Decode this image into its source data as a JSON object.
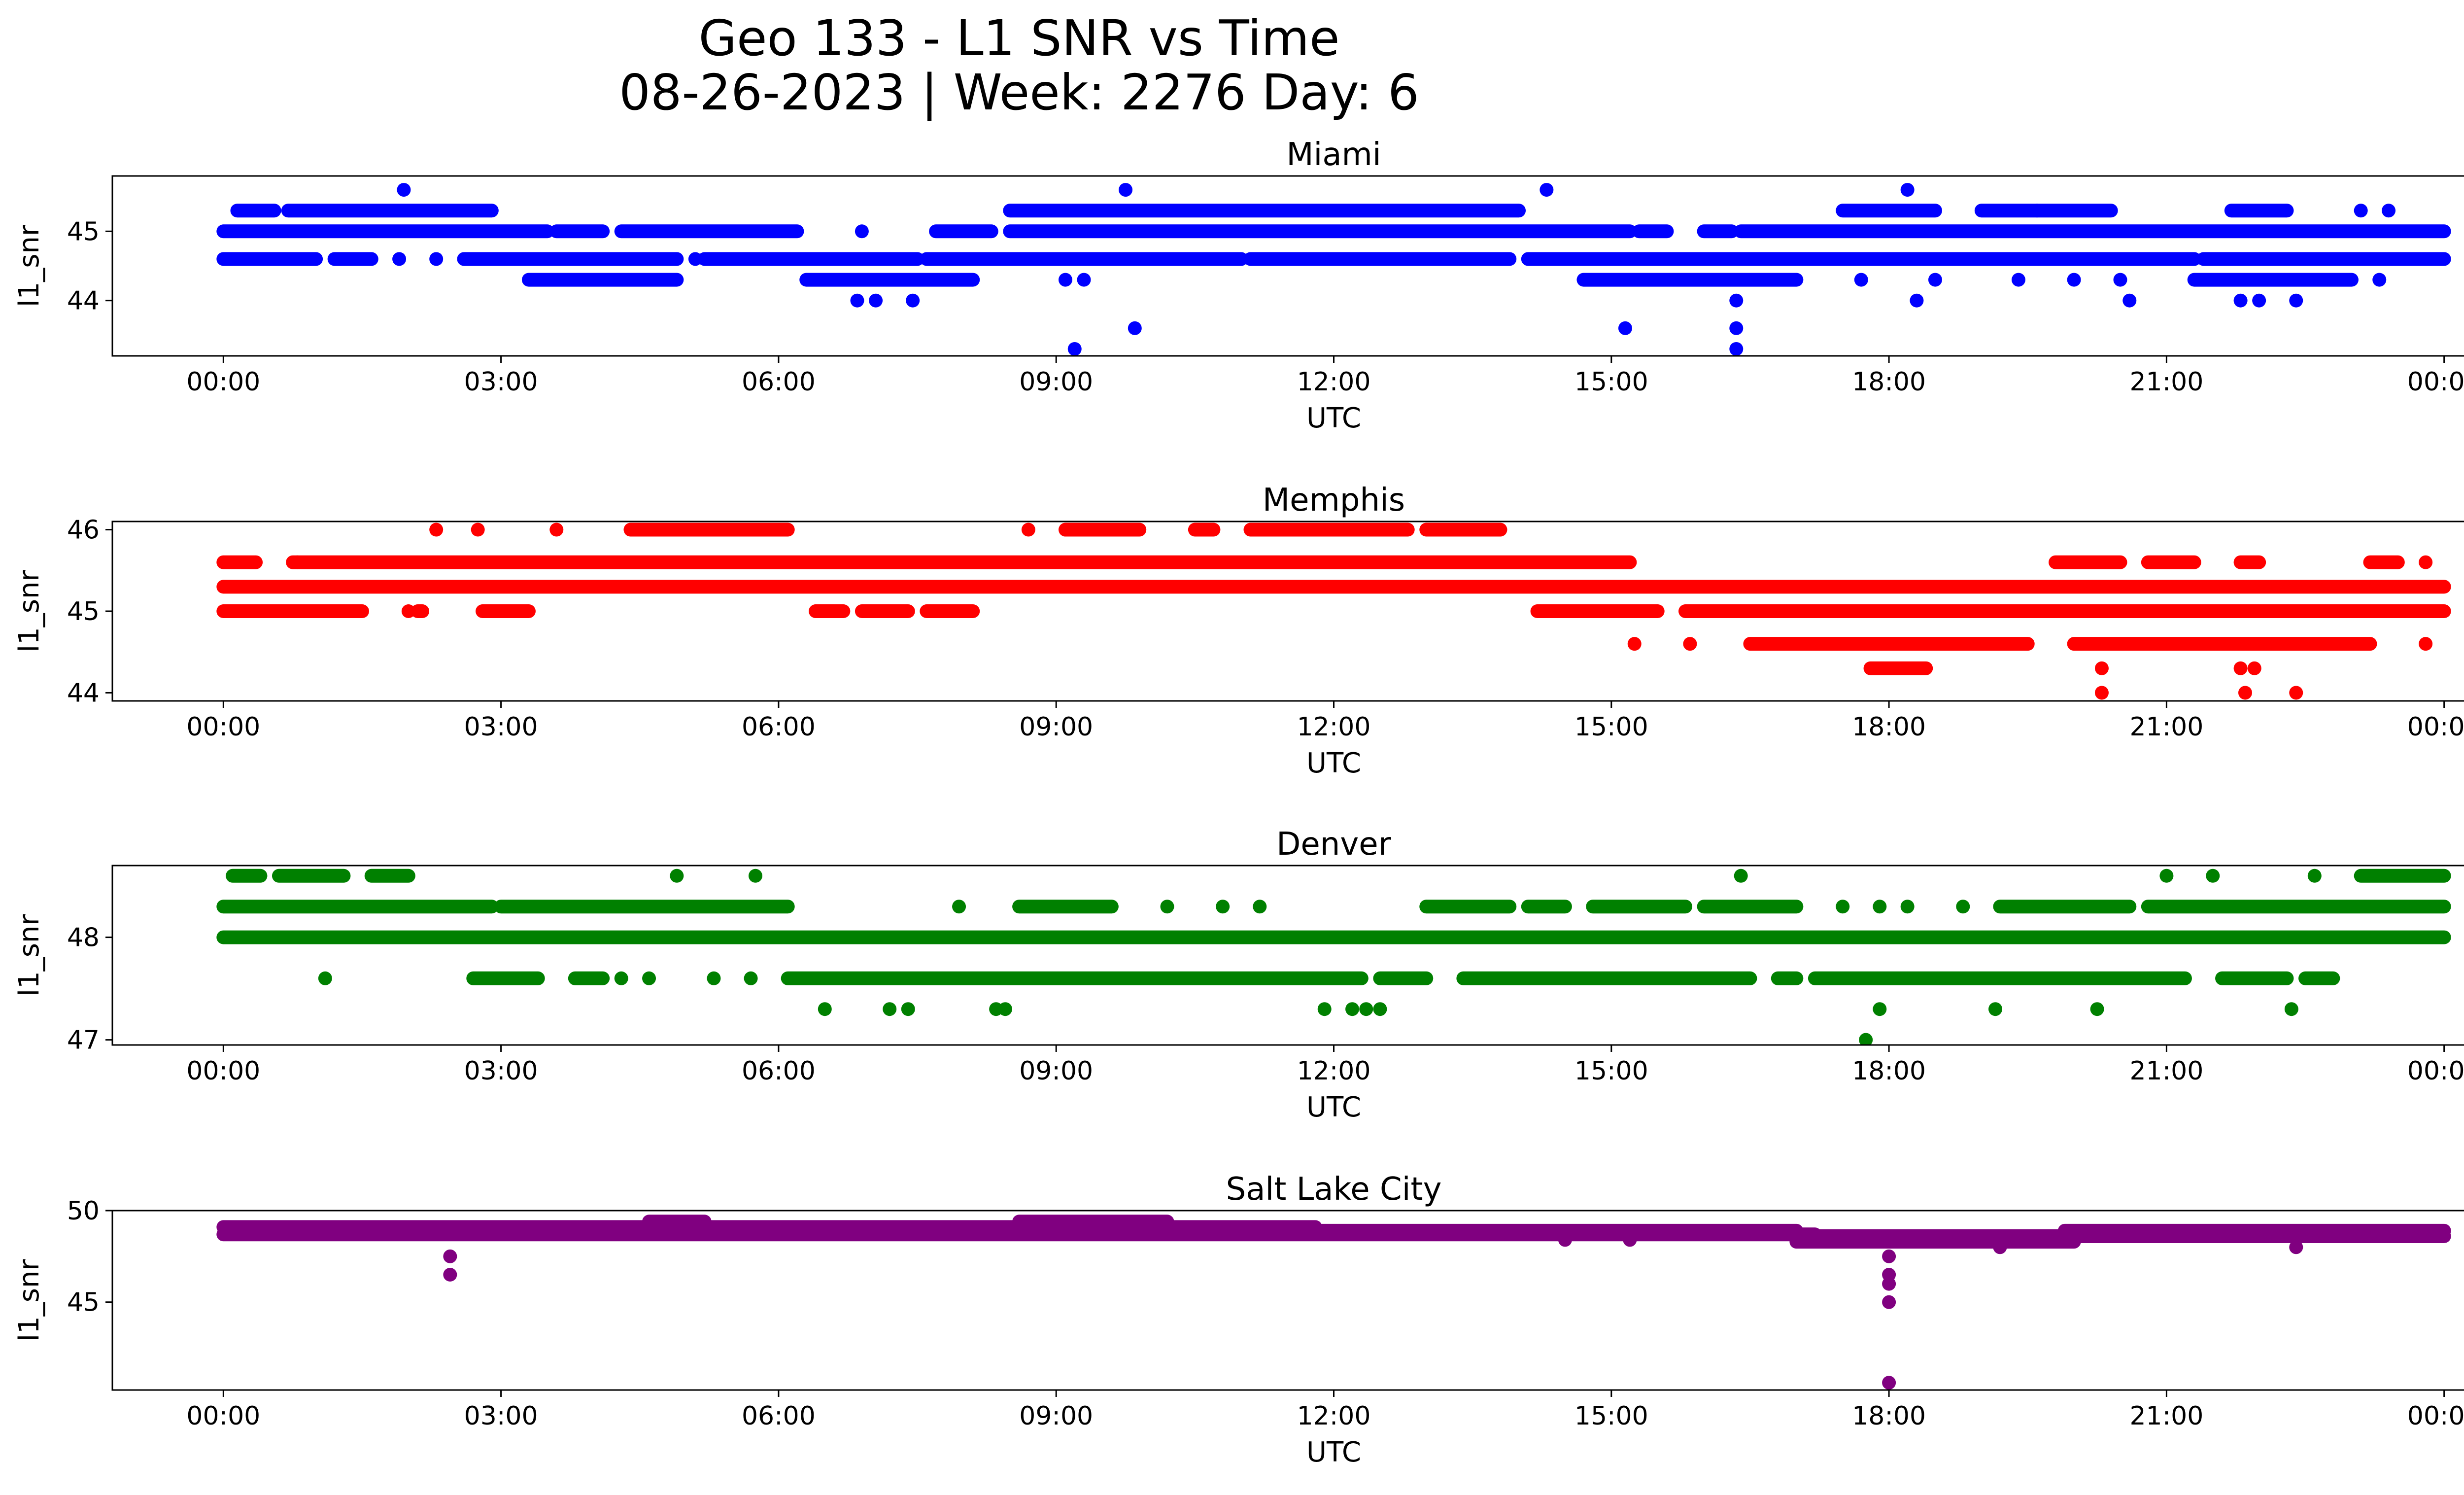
{
  "figure": {
    "title_line1": "Geo 133 - L1 SNR vs Time",
    "title_line2": "08-26-2023 | Week: 2276 Day: 6"
  },
  "chart_data": [
    {
      "type": "scatter",
      "title": "Miami",
      "xlabel": "UTC",
      "ylabel": "l1_snr",
      "color": "#0000ff",
      "x_ticks": [
        "00:00",
        "03:00",
        "06:00",
        "09:00",
        "12:00",
        "15:00",
        "18:00",
        "21:00",
        "00:00"
      ],
      "x_range_hours": [
        -1.2,
        25.2
      ],
      "ylim": [
        43.2,
        45.8
      ],
      "y_ticks": [
        44,
        45
      ],
      "bands": [
        {
          "y": 45.0,
          "segments": [
            [
              0,
              3.5
            ],
            [
              3.6,
              4.1
            ],
            [
              4.3,
              6.2
            ],
            [
              7.7,
              8.3
            ],
            [
              8.5,
              15.2
            ],
            [
              15.3,
              15.6
            ],
            [
              16.0,
              16.3
            ],
            [
              16.4,
              24.0
            ]
          ]
        },
        {
          "y": 44.6,
          "segments": [
            [
              0,
              1.0
            ],
            [
              1.2,
              1.6
            ],
            [
              2.6,
              4.9
            ],
            [
              5.2,
              7.5
            ],
            [
              7.6,
              11.0
            ],
            [
              11.1,
              13.9
            ],
            [
              14.1,
              21.3
            ],
            [
              21.4,
              24.0
            ]
          ]
        },
        {
          "y": 45.3,
          "segments": [
            [
              0.15,
              0.55
            ],
            [
              0.7,
              2.9
            ],
            [
              8.5,
              14.0
            ],
            [
              17.5,
              18.5
            ],
            [
              19.0,
              20.4
            ],
            [
              21.7,
              22.3
            ]
          ]
        },
        {
          "y": 44.3,
          "segments": [
            [
              3.3,
              4.9
            ],
            [
              6.3,
              8.1
            ],
            [
              14.7,
              17.0
            ],
            [
              21.3,
              23.0
            ]
          ]
        }
      ],
      "points": [
        {
          "x": 1.95,
          "y": 45.6
        },
        {
          "x": 9.75,
          "y": 45.6
        },
        {
          "x": 14.3,
          "y": 45.6
        },
        {
          "x": 18.2,
          "y": 45.6
        },
        {
          "x": 2.3,
          "y": 44.6
        },
        {
          "x": 1.9,
          "y": 44.6
        },
        {
          "x": 5.1,
          "y": 44.6
        },
        {
          "x": 6.9,
          "y": 45.0
        },
        {
          "x": 23.4,
          "y": 45.3
        },
        {
          "x": 23.1,
          "y": 45.3
        },
        {
          "x": 19.6,
          "y": 45.3
        },
        {
          "x": 6.85,
          "y": 44.0
        },
        {
          "x": 7.05,
          "y": 44.0
        },
        {
          "x": 7.45,
          "y": 44.0
        },
        {
          "x": 20.6,
          "y": 44.0
        },
        {
          "x": 21.8,
          "y": 44.0
        },
        {
          "x": 22.0,
          "y": 44.0
        },
        {
          "x": 22.4,
          "y": 44.0
        },
        {
          "x": 16.35,
          "y": 44.0
        },
        {
          "x": 18.3,
          "y": 44.0
        },
        {
          "x": 9.85,
          "y": 43.6
        },
        {
          "x": 15.15,
          "y": 43.6
        },
        {
          "x": 16.35,
          "y": 43.6
        },
        {
          "x": 9.2,
          "y": 43.3
        },
        {
          "x": 16.35,
          "y": 43.3
        },
        {
          "x": 17.7,
          "y": 44.3
        },
        {
          "x": 18.5,
          "y": 44.3
        },
        {
          "x": 19.4,
          "y": 44.3
        },
        {
          "x": 20.0,
          "y": 44.3
        },
        {
          "x": 20.5,
          "y": 44.3
        },
        {
          "x": 23.3,
          "y": 44.3
        },
        {
          "x": 9.1,
          "y": 44.3
        },
        {
          "x": 9.3,
          "y": 44.3
        }
      ]
    },
    {
      "type": "scatter",
      "title": "Memphis",
      "xlabel": "UTC",
      "ylabel": "l1_snr",
      "color": "#ff0000",
      "x_ticks": [
        "00:00",
        "03:00",
        "06:00",
        "09:00",
        "12:00",
        "15:00",
        "18:00",
        "21:00",
        "00:00"
      ],
      "x_range_hours": [
        -1.2,
        25.2
      ],
      "ylim": [
        43.9,
        46.1
      ],
      "y_ticks": [
        44,
        45,
        46
      ],
      "bands": [
        {
          "y": 45.3,
          "segments": [
            [
              0,
              24.0
            ]
          ]
        },
        {
          "y": 45.6,
          "segments": [
            [
              0,
              0.35
            ],
            [
              0.75,
              15.2
            ],
            [
              19.8,
              20.5
            ],
            [
              20.8,
              21.3
            ],
            [
              21.8,
              22.0
            ],
            [
              23.2,
              23.5
            ]
          ]
        },
        {
          "y": 45.0,
          "segments": [
            [
              0,
              1.5
            ],
            [
              2.1,
              2.15
            ],
            [
              2.8,
              3.3
            ],
            [
              6.4,
              6.7
            ],
            [
              6.9,
              7.4
            ],
            [
              7.6,
              8.1
            ],
            [
              14.2,
              15.5
            ],
            [
              15.8,
              24.0
            ]
          ]
        },
        {
          "y": 46.0,
          "segments": [
            [
              4.4,
              6.1
            ],
            [
              9.1,
              9.9
            ],
            [
              10.5,
              10.7
            ],
            [
              11.1,
              12.8
            ],
            [
              13.0,
              13.8
            ]
          ]
        },
        {
          "y": 44.6,
          "segments": [
            [
              16.5,
              19.5
            ],
            [
              20.0,
              23.2
            ]
          ]
        },
        {
          "y": 44.3,
          "segments": [
            [
              17.8,
              18.4
            ]
          ]
        }
      ],
      "points": [
        {
          "x": 2.3,
          "y": 46.0
        },
        {
          "x": 2.75,
          "y": 46.0
        },
        {
          "x": 3.6,
          "y": 46.0
        },
        {
          "x": 8.7,
          "y": 46.0
        },
        {
          "x": 2.0,
          "y": 45.0
        },
        {
          "x": 15.25,
          "y": 44.6
        },
        {
          "x": 15.85,
          "y": 44.6
        },
        {
          "x": 23.8,
          "y": 44.6
        },
        {
          "x": 20.3,
          "y": 44.3
        },
        {
          "x": 21.8,
          "y": 44.3
        },
        {
          "x": 21.95,
          "y": 44.3
        },
        {
          "x": 20.3,
          "y": 44.0
        },
        {
          "x": 21.85,
          "y": 44.0
        },
        {
          "x": 22.4,
          "y": 44.0
        },
        {
          "x": 0.8,
          "y": 45.6
        },
        {
          "x": 23.8,
          "y": 45.6
        }
      ]
    },
    {
      "type": "scatter",
      "title": "Denver",
      "xlabel": "UTC",
      "ylabel": "l1_snr",
      "color": "#008000",
      "x_ticks": [
        "00:00",
        "03:00",
        "06:00",
        "09:00",
        "12:00",
        "15:00",
        "18:00",
        "21:00",
        "00:00"
      ],
      "x_range_hours": [
        -1.2,
        25.2
      ],
      "ylim": [
        46.95,
        48.7
      ],
      "y_ticks": [
        47,
        48
      ],
      "bands": [
        {
          "y": 48.0,
          "segments": [
            [
              0,
              24.0
            ]
          ]
        },
        {
          "y": 48.3,
          "segments": [
            [
              0,
              2.9
            ],
            [
              3.0,
              6.1
            ],
            [
              8.6,
              9.6
            ],
            [
              13.0,
              13.9
            ],
            [
              14.1,
              14.5
            ],
            [
              14.8,
              15.8
            ],
            [
              16.0,
              17.0
            ],
            [
              19.2,
              20.6
            ],
            [
              20.8,
              24.0
            ]
          ]
        },
        {
          "y": 47.6,
          "segments": [
            [
              2.7,
              3.4
            ],
            [
              3.8,
              4.1
            ],
            [
              6.1,
              12.3
            ],
            [
              12.5,
              13.0
            ],
            [
              13.4,
              16.5
            ],
            [
              16.8,
              17.0
            ],
            [
              17.2,
              21.2
            ],
            [
              21.6,
              22.3
            ],
            [
              22.5,
              22.8
            ]
          ]
        },
        {
          "y": 48.6,
          "segments": [
            [
              0.1,
              0.4
            ],
            [
              0.6,
              1.3
            ],
            [
              1.6,
              2.0
            ],
            [
              23.1,
              24.0
            ]
          ]
        }
      ],
      "points": [
        {
          "x": 1.1,
          "y": 47.6
        },
        {
          "x": 4.3,
          "y": 47.6
        },
        {
          "x": 4.6,
          "y": 47.6
        },
        {
          "x": 5.3,
          "y": 47.6
        },
        {
          "x": 5.7,
          "y": 47.6
        },
        {
          "x": 4.9,
          "y": 48.6
        },
        {
          "x": 5.75,
          "y": 48.6
        },
        {
          "x": 16.4,
          "y": 48.6
        },
        {
          "x": 21.0,
          "y": 48.6
        },
        {
          "x": 21.5,
          "y": 48.6
        },
        {
          "x": 22.6,
          "y": 48.6
        },
        {
          "x": 7.95,
          "y": 48.3
        },
        {
          "x": 10.2,
          "y": 48.3
        },
        {
          "x": 10.8,
          "y": 48.3
        },
        {
          "x": 11.2,
          "y": 48.3
        },
        {
          "x": 17.5,
          "y": 48.3
        },
        {
          "x": 17.9,
          "y": 48.3
        },
        {
          "x": 18.2,
          "y": 48.3
        },
        {
          "x": 18.8,
          "y": 48.3
        },
        {
          "x": 6.5,
          "y": 47.3
        },
        {
          "x": 7.2,
          "y": 47.3
        },
        {
          "x": 7.4,
          "y": 47.3
        },
        {
          "x": 8.35,
          "y": 47.3
        },
        {
          "x": 8.45,
          "y": 47.3
        },
        {
          "x": 11.9,
          "y": 47.3
        },
        {
          "x": 12.2,
          "y": 47.3
        },
        {
          "x": 12.35,
          "y": 47.3
        },
        {
          "x": 12.5,
          "y": 47.3
        },
        {
          "x": 17.9,
          "y": 47.3
        },
        {
          "x": 19.15,
          "y": 47.3
        },
        {
          "x": 20.25,
          "y": 47.3
        },
        {
          "x": 22.35,
          "y": 47.3
        },
        {
          "x": 17.75,
          "y": 47.0
        }
      ]
    },
    {
      "type": "scatter",
      "title": "Salt Lake City",
      "xlabel": "UTC",
      "ylabel": "l1_snr",
      "color": "#800080",
      "x_ticks": [
        "00:00",
        "03:00",
        "06:00",
        "09:00",
        "12:00",
        "15:00",
        "18:00",
        "21:00",
        "00:00"
      ],
      "x_range_hours": [
        -1.2,
        25.2
      ],
      "ylim": [
        40.2,
        50.0
      ],
      "y_ticks": [
        45,
        50
      ],
      "bands": [
        {
          "y": 49.1,
          "segments": [
            [
              0,
              11.8
            ]
          ]
        },
        {
          "y": 48.7,
          "segments": [
            [
              0,
              17.2
            ]
          ]
        },
        {
          "y": 49.4,
          "segments": [
            [
              8.6,
              10.2
            ],
            [
              4.6,
              5.2
            ]
          ]
        },
        {
          "y": 48.9,
          "segments": [
            [
              11.7,
              17.0
            ],
            [
              19.9,
              24.0
            ]
          ]
        },
        {
          "y": 48.3,
          "segments": [
            [
              17.0,
              20.0
            ]
          ]
        },
        {
          "y": 48.6,
          "segments": [
            [
              17.0,
              24.0
            ]
          ]
        }
      ],
      "points": [
        {
          "x": 2.45,
          "y": 47.5
        },
        {
          "x": 2.45,
          "y": 46.5
        },
        {
          "x": 18.0,
          "y": 47.5
        },
        {
          "x": 18.0,
          "y": 46.5
        },
        {
          "x": 18.0,
          "y": 46.0
        },
        {
          "x": 18.0,
          "y": 45.0
        },
        {
          "x": 18.0,
          "y": 40.6
        },
        {
          "x": 14.5,
          "y": 48.4
        },
        {
          "x": 15.2,
          "y": 48.4
        },
        {
          "x": 19.2,
          "y": 48.0
        },
        {
          "x": 22.4,
          "y": 48.0
        }
      ]
    }
  ]
}
